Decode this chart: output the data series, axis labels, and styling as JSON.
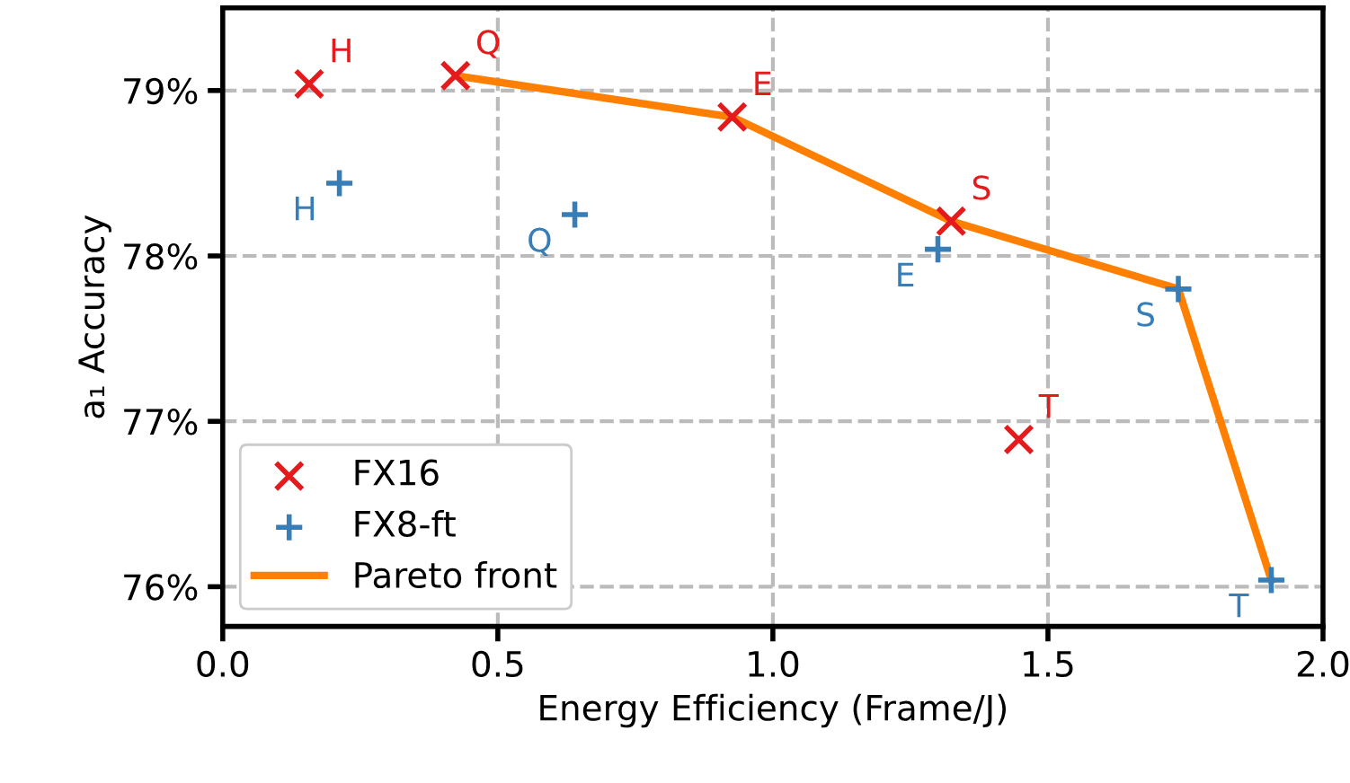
{
  "chart_data": {
    "type": "scatter",
    "xlabel": "Energy Efficiency (Frame/J)",
    "ylabel": "a₁ Accuracy",
    "xlim": [
      0,
      2.0
    ],
    "ylim": [
      75.76,
      79.5
    ],
    "xticks": [
      {
        "value": 0,
        "label": "0.0"
      },
      0.5,
      {
        "value": 1,
        "label": "1.0"
      },
      1.5,
      {
        "value": 2,
        "label": "2.0"
      }
    ],
    "yticks": [
      {
        "value": 76,
        "label": "76%"
      },
      {
        "value": 77,
        "label": "77%"
      },
      {
        "value": 78,
        "label": "78%"
      },
      {
        "value": 79,
        "label": "79%"
      }
    ],
    "grid": true,
    "legend": "bottom left",
    "series": [
      {
        "name": "FX16",
        "color": "#e41a1c",
        "marker": "cross",
        "x": [
          0.157,
          0.423,
          0.926,
          1.324,
          1.447
        ],
        "values": [
          79.04,
          79.09,
          78.84,
          78.21,
          76.89
        ],
        "value_labels": [
          "H",
          "Q",
          "E",
          "S",
          "T"
        ]
      },
      {
        "name": "FX8-ft",
        "color": "#377eb8",
        "marker": "plus",
        "x": [
          0.212,
          0.64,
          1.3,
          1.737,
          1.906
        ],
        "values": [
          78.44,
          78.25,
          78.04,
          77.8,
          76.04
        ],
        "value_labels": [
          "H",
          "Q",
          "E",
          "S",
          "T"
        ]
      },
      {
        "name": "Pareto front",
        "type": "line",
        "color": "#ff7f00",
        "marker": "none",
        "line_style": "solid",
        "x": [
          0.423,
          0.926,
          1.324,
          1.737,
          1.906
        ],
        "values": [
          79.09,
          78.84,
          78.21,
          77.8,
          76.04
        ]
      }
    ]
  }
}
